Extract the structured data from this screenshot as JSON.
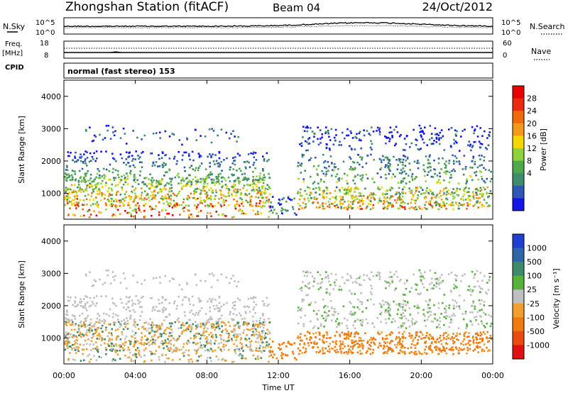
{
  "header": {
    "station": "Zhongshan Station (fitACF)",
    "beam": "Beam 04",
    "date": "24/Oct/2012"
  },
  "left_labels": {
    "nsky": "N.Sky",
    "freq": "Freq.",
    "mhz": "[MHz]",
    "cpid": "CPID"
  },
  "right_labels": {
    "nsearch": "N.Search",
    "nave": "Nave"
  },
  "cpid_text": "normal (fast stereo) 153",
  "colors": {
    "power": [
      "#1515e8",
      "#2f57b4",
      "#3f8c6d",
      "#4fa84b",
      "#8fd23a",
      "#f4d600",
      "#f39a1a",
      "#ee6a0a",
      "#ea2a10",
      "#e80000"
    ],
    "velocity": [
      "#1f3fd0",
      "#2f66a8",
      "#3f8a6a",
      "#56b23a",
      "#bfbfbf",
      "#f0a030",
      "#ee7a10",
      "#e84a10",
      "#e01010"
    ]
  },
  "chart_data": [
    {
      "name": "noise-panel",
      "type": "line",
      "ylabel_left": "N.Sky",
      "ylabel_right": "N.Search",
      "yticks_left": [
        "10^5",
        "10^0"
      ],
      "yticks_right": [
        "10^5",
        "10^0"
      ],
      "xlim": [
        0,
        24
      ]
    },
    {
      "name": "freq-panel",
      "type": "line",
      "yticks_left": [
        "18",
        "8"
      ],
      "yticks_right": [
        "60",
        "0"
      ],
      "xlim": [
        0,
        24
      ]
    },
    {
      "name": "power-panel",
      "type": "heatmap",
      "ylabel": "Slant Range [km]",
      "yticks": [
        1000,
        2000,
        3000,
        4000
      ],
      "ylim": [
        200,
        4500
      ],
      "xlim": [
        0,
        24
      ],
      "colorbar_label": "Power [dB]",
      "colorbar_ticks": [
        "28",
        "24",
        "20",
        "16",
        "12",
        "8",
        "4"
      ]
    },
    {
      "name": "velocity-panel",
      "type": "heatmap",
      "ylabel": "Slant Range [km]",
      "yticks": [
        1000,
        2000,
        3000,
        4000
      ],
      "ylim": [
        200,
        4500
      ],
      "xlim": [
        0,
        24
      ],
      "xlabel": "Time UT",
      "xticks": [
        "00:00",
        "04:00",
        "08:00",
        "12:00",
        "16:00",
        "20:00",
        "00:00"
      ],
      "colorbar_label": "Velocity [m s⁻¹]",
      "colorbar_ticks": [
        "1000",
        "500",
        "100",
        "25",
        "-25",
        "-100",
        "-500",
        "-1000"
      ]
    }
  ]
}
